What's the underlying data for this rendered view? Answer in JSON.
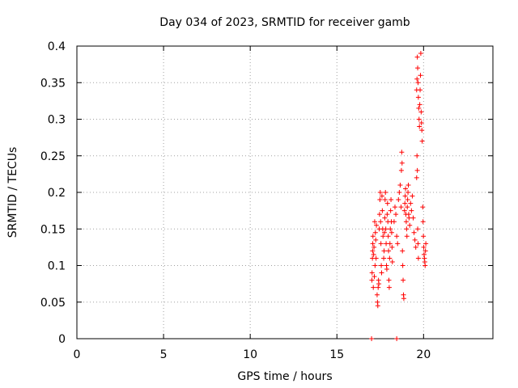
{
  "chart_data": {
    "type": "scatter",
    "title": "Day 034 of 2023, SRMTID for receiver gamb",
    "xlabel": "GPS time / hours",
    "ylabel": "SRMTID / TECUs",
    "xlim": [
      0,
      24
    ],
    "ylim": [
      0,
      0.4
    ],
    "xticks": [
      "0",
      "5",
      "10",
      "15",
      "20"
    ],
    "yticks": [
      "0",
      "0.05",
      "0.1",
      "0.15",
      "0.2",
      "0.25",
      "0.3",
      "0.35",
      "0.4"
    ],
    "grid": true,
    "marker": "plus",
    "color": "#ff0000",
    "series": [
      {
        "points": [
          [
            17.0,
            0.0
          ],
          [
            18.45,
            0.0
          ],
          [
            17.02,
            0.08
          ],
          [
            17.03,
            0.09
          ],
          [
            17.05,
            0.11
          ],
          [
            17.06,
            0.12
          ],
          [
            17.07,
            0.13
          ],
          [
            17.08,
            0.14
          ],
          [
            17.1,
            0.07
          ],
          [
            17.12,
            0.115
          ],
          [
            17.14,
            0.125
          ],
          [
            17.16,
            0.085
          ],
          [
            17.18,
            0.16
          ],
          [
            17.2,
            0.1
          ],
          [
            17.22,
            0.145
          ],
          [
            17.24,
            0.135
          ],
          [
            17.26,
            0.11
          ],
          [
            17.28,
            0.155
          ],
          [
            17.32,
            0.06
          ],
          [
            17.34,
            0.05
          ],
          [
            17.36,
            0.045
          ],
          [
            17.38,
            0.07
          ],
          [
            17.4,
            0.08
          ],
          [
            17.42,
            0.075
          ],
          [
            17.44,
            0.15
          ],
          [
            17.46,
            0.17
          ],
          [
            17.48,
            0.19
          ],
          [
            17.5,
            0.2
          ],
          [
            17.52,
            0.16
          ],
          [
            17.54,
            0.13
          ],
          [
            17.56,
            0.1
          ],
          [
            17.58,
            0.09
          ],
          [
            17.6,
            0.195
          ],
          [
            17.62,
            0.175
          ],
          [
            17.64,
            0.15
          ],
          [
            17.66,
            0.14
          ],
          [
            17.7,
            0.11
          ],
          [
            17.72,
            0.12
          ],
          [
            17.74,
            0.145
          ],
          [
            17.76,
            0.165
          ],
          [
            17.78,
            0.19
          ],
          [
            17.8,
            0.2
          ],
          [
            17.82,
            0.15
          ],
          [
            17.84,
            0.13
          ],
          [
            17.86,
            0.1
          ],
          [
            17.88,
            0.095
          ],
          [
            17.9,
            0.17
          ],
          [
            17.92,
            0.185
          ],
          [
            17.94,
            0.16
          ],
          [
            17.96,
            0.14
          ],
          [
            17.98,
            0.12
          ],
          [
            18.0,
            0.08
          ],
          [
            18.02,
            0.07
          ],
          [
            18.04,
            0.11
          ],
          [
            18.06,
            0.13
          ],
          [
            18.08,
            0.15
          ],
          [
            18.1,
            0.175
          ],
          [
            18.12,
            0.19
          ],
          [
            18.14,
            0.16
          ],
          [
            18.16,
            0.145
          ],
          [
            18.18,
            0.125
          ],
          [
            18.2,
            0.105
          ],
          [
            18.3,
            0.16
          ],
          [
            18.35,
            0.18
          ],
          [
            18.4,
            0.17
          ],
          [
            18.45,
            0.14
          ],
          [
            18.5,
            0.13
          ],
          [
            18.55,
            0.19
          ],
          [
            18.6,
            0.2
          ],
          [
            18.65,
            0.21
          ],
          [
            18.7,
            0.18
          ],
          [
            18.72,
            0.23
          ],
          [
            18.74,
            0.255
          ],
          [
            18.76,
            0.24
          ],
          [
            18.78,
            0.12
          ],
          [
            18.8,
            0.1
          ],
          [
            18.82,
            0.08
          ],
          [
            18.84,
            0.06
          ],
          [
            18.86,
            0.055
          ],
          [
            18.9,
            0.175
          ],
          [
            18.92,
            0.185
          ],
          [
            18.94,
            0.195
          ],
          [
            18.96,
            0.205
          ],
          [
            18.98,
            0.17
          ],
          [
            19.0,
            0.16
          ],
          [
            19.02,
            0.15
          ],
          [
            19.04,
            0.14
          ],
          [
            19.06,
            0.18
          ],
          [
            19.08,
            0.19
          ],
          [
            19.1,
            0.2
          ],
          [
            19.12,
            0.21
          ],
          [
            19.14,
            0.17
          ],
          [
            19.16,
            0.165
          ],
          [
            19.2,
            0.155
          ],
          [
            19.25,
            0.185
          ],
          [
            19.3,
            0.175
          ],
          [
            19.35,
            0.195
          ],
          [
            19.4,
            0.165
          ],
          [
            19.45,
            0.145
          ],
          [
            19.5,
            0.135
          ],
          [
            19.55,
            0.125
          ],
          [
            19.6,
            0.22
          ],
          [
            19.62,
            0.25
          ],
          [
            19.64,
            0.23
          ],
          [
            19.66,
            0.15
          ],
          [
            19.68,
            0.13
          ],
          [
            19.7,
            0.11
          ],
          [
            19.6,
            0.34
          ],
          [
            19.62,
            0.355
          ],
          [
            19.64,
            0.385
          ],
          [
            19.66,
            0.37
          ],
          [
            19.68,
            0.35
          ],
          [
            19.7,
            0.33
          ],
          [
            19.72,
            0.315
          ],
          [
            19.74,
            0.3
          ],
          [
            19.76,
            0.29
          ],
          [
            19.78,
            0.32
          ],
          [
            19.8,
            0.34
          ],
          [
            19.82,
            0.36
          ],
          [
            19.84,
            0.39
          ],
          [
            19.86,
            0.31
          ],
          [
            19.88,
            0.295
          ],
          [
            19.9,
            0.285
          ],
          [
            19.92,
            0.27
          ],
          [
            19.95,
            0.18
          ],
          [
            19.97,
            0.16
          ],
          [
            19.99,
            0.14
          ],
          [
            20.01,
            0.125
          ],
          [
            20.03,
            0.115
          ],
          [
            20.05,
            0.11
          ],
          [
            20.07,
            0.105
          ],
          [
            20.09,
            0.1
          ],
          [
            20.11,
            0.12
          ],
          [
            20.13,
            0.13
          ]
        ]
      }
    ]
  }
}
